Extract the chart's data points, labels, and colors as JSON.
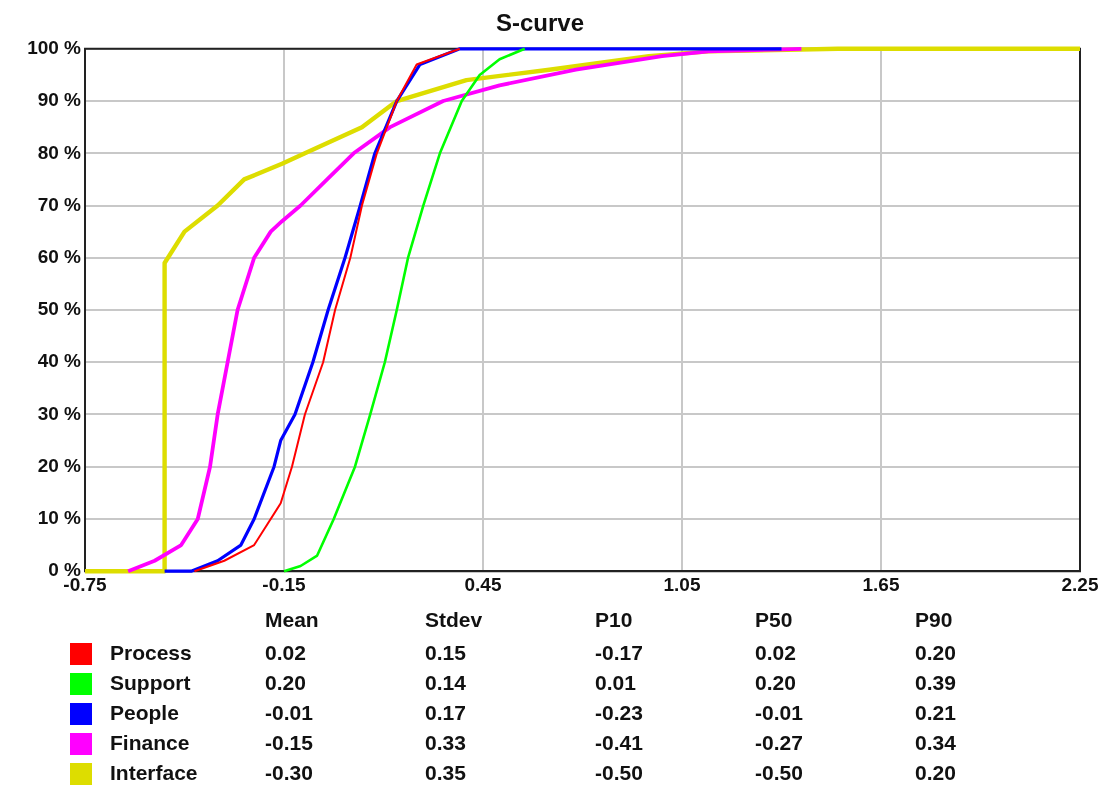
{
  "chart_data": {
    "type": "line",
    "title": "S-curve",
    "legend": "bottom",
    "grid": true,
    "marker": "none",
    "line_style": "solid",
    "xlim": [
      -0.75,
      2.25
    ],
    "xticks": [
      -0.75,
      -0.15,
      0.45,
      1.05,
      1.65,
      2.25
    ],
    "ylim": [
      0,
      100
    ],
    "yticks": [
      {
        "value": 0,
        "label": "0 %"
      },
      {
        "value": 10,
        "label": "10 %"
      },
      {
        "value": 20,
        "label": "20 %"
      },
      {
        "value": 30,
        "label": "30 %"
      },
      {
        "value": 40,
        "label": "40 %"
      },
      {
        "value": 50,
        "label": "50 %"
      },
      {
        "value": 60,
        "label": "60 %"
      },
      {
        "value": 70,
        "label": "70 %"
      },
      {
        "value": 80,
        "label": "80 %"
      },
      {
        "value": 90,
        "label": "90 %"
      },
      {
        "value": 100,
        "label": "100 %"
      }
    ],
    "series": [
      {
        "name": "Process",
        "color": "#ff0000",
        "x": [
          -0.42,
          -0.33,
          -0.24,
          -0.16,
          -0.126,
          -0.087,
          -0.032,
          0.004,
          0.05,
          0.085,
          0.13,
          0.19,
          0.25,
          0.38
        ],
        "values": [
          0,
          2,
          5,
          13,
          20,
          30,
          40,
          50,
          60,
          70,
          80,
          90,
          97,
          100
        ]
      },
      {
        "name": "Support",
        "color": "#00ff00",
        "x": [
          -0.15,
          -0.1,
          -0.05,
          0.0,
          0.064,
          0.11,
          0.154,
          0.19,
          0.224,
          0.27,
          0.32,
          0.386,
          0.44,
          0.5,
          0.576
        ],
        "values": [
          0,
          1,
          3,
          10,
          20,
          30,
          40,
          50,
          60,
          70,
          80,
          90,
          95,
          98,
          100
        ]
      },
      {
        "name": "People",
        "color": "#0000ff",
        "x": [
          -0.51,
          -0.43,
          -0.35,
          -0.28,
          -0.24,
          -0.18,
          -0.16,
          -0.117,
          -0.063,
          -0.017,
          0.034,
          0.08,
          0.124,
          0.19,
          0.26,
          0.38,
          1.35
        ],
        "values": [
          0,
          0,
          2,
          5,
          10,
          20,
          25,
          30,
          40,
          50,
          60,
          70,
          80,
          90,
          97,
          100,
          100
        ]
      },
      {
        "name": "Finance",
        "color": "#ff00ff",
        "x": [
          -0.62,
          -0.54,
          -0.46,
          -0.41,
          -0.373,
          -0.35,
          -0.32,
          -0.29,
          -0.24,
          -0.19,
          -0.156,
          -0.1,
          -0.02,
          0.06,
          0.17,
          0.33,
          0.5,
          0.73,
          0.99,
          1.13,
          1.41
        ],
        "values": [
          0,
          2,
          5,
          10,
          20,
          30,
          40,
          50,
          60,
          65,
          67,
          70,
          75,
          80,
          85,
          90,
          93,
          96,
          98.6,
          99.5,
          100
        ]
      },
      {
        "name": "Interface",
        "color": "#dddd00",
        "x": [
          -0.75,
          -0.51,
          -0.51,
          -0.45,
          -0.35,
          -0.27,
          -0.156,
          -0.087,
          0.085,
          0.19,
          0.4,
          0.65,
          0.95,
          1.13,
          1.52,
          2.25
        ],
        "values": [
          0,
          0,
          59,
          65,
          70,
          75,
          78,
          80,
          85,
          90,
          94,
          96,
          98.6,
          99.5,
          100,
          100
        ]
      }
    ],
    "annotations": [
      "Mean",
      "Stdev",
      "P10",
      "P50",
      "P90",
      "0.02",
      "0.15",
      "-0.17",
      "0.02",
      "0.20",
      "0.20",
      "0.14",
      "0.01",
      "0.20",
      "0.39",
      "-0.01",
      "0.17",
      "-0.23",
      "-0.01",
      "0.21",
      "-0.15",
      "0.33",
      "-0.41",
      "-0.27",
      "0.34",
      "-0.30",
      "0.35",
      "-0.50",
      "-0.50",
      "0.20"
    ]
  }
}
